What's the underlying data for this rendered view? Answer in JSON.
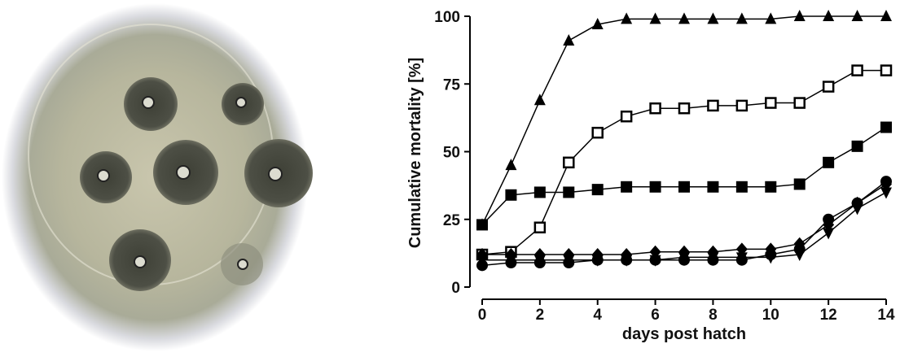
{
  "chart_data": {
    "type": "line",
    "xlabel": "days post hatch",
    "ylabel": "Cumulative mortality [%]",
    "x": [
      0,
      1,
      2,
      3,
      4,
      5,
      6,
      7,
      8,
      9,
      10,
      11,
      12,
      13,
      14
    ],
    "xlim": [
      0,
      14
    ],
    "xticks": [
      0,
      2,
      4,
      6,
      8,
      10,
      12,
      14
    ],
    "ylim": [
      0,
      100
    ],
    "yticks": [
      0,
      25,
      50,
      75,
      100
    ],
    "series": [
      {
        "marker": "triangle-up",
        "color": "#000000",
        "values": [
          23,
          45,
          69,
          91,
          97,
          99,
          99,
          99,
          99,
          99,
          99,
          100,
          100,
          100,
          100
        ]
      },
      {
        "marker": "square-open",
        "color": "#000000",
        "values": [
          12,
          13,
          22,
          46,
          57,
          63,
          66,
          66,
          67,
          67,
          68,
          68,
          74,
          80,
          80
        ]
      },
      {
        "marker": "square",
        "color": "#000000",
        "values": [
          23,
          34,
          35,
          35,
          36,
          37,
          37,
          37,
          37,
          37,
          37,
          38,
          46,
          52,
          59
        ]
      },
      {
        "marker": "diamond",
        "color": "#000000",
        "values": [
          12,
          12,
          12,
          12,
          12,
          12,
          13,
          13,
          13,
          14,
          14,
          16,
          23,
          31,
          38
        ]
      },
      {
        "marker": "circle",
        "color": "#000000",
        "values": [
          8,
          9,
          9,
          9,
          10,
          10,
          10,
          10,
          10,
          10,
          12,
          14,
          25,
          31,
          39
        ]
      },
      {
        "marker": "triangle-down",
        "color": "#000000",
        "values": [
          10,
          10,
          10,
          10,
          10,
          10,
          10,
          11,
          11,
          11,
          11,
          12,
          20,
          29,
          35
        ]
      }
    ]
  }
}
